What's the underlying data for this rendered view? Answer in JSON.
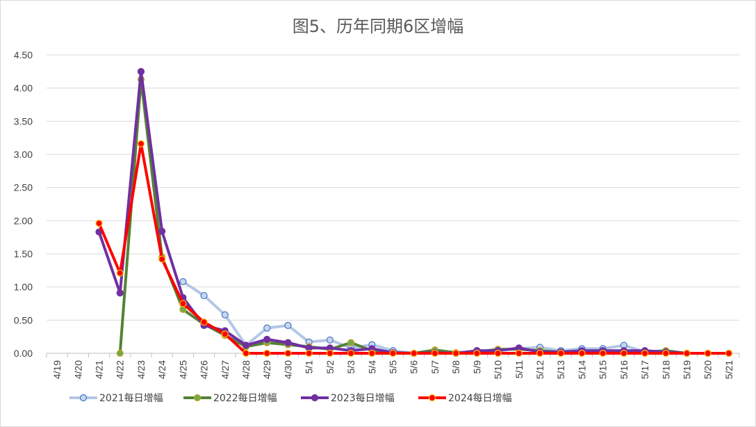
{
  "chart_data": {
    "type": "line",
    "title": "图5、历年同期6区增幅",
    "xlabel": "",
    "ylabel": "",
    "ylim": [
      0,
      4.5
    ],
    "yticks": [
      "0.00",
      "0.50",
      "1.00",
      "1.50",
      "2.00",
      "2.50",
      "3.00",
      "3.50",
      "4.00",
      "4.50"
    ],
    "grid": true,
    "legend_position": "bottom",
    "categories": [
      "4/19",
      "4/20",
      "4/21",
      "4/22",
      "4/23",
      "4/24",
      "4/25",
      "4/26",
      "4/27",
      "4/28",
      "4/29",
      "4/30",
      "5/1",
      "5/2",
      "5/3",
      "5/4",
      "5/5",
      "5/6",
      "5/7",
      "5/8",
      "5/9",
      "5/10",
      "5/11",
      "5/12",
      "5/13",
      "5/14",
      "5/15",
      "5/16",
      "5/17",
      "5/18",
      "5/19",
      "5/20",
      "5/21"
    ],
    "series": [
      {
        "name": "2021每日增幅",
        "line_color": "#b4c7e7",
        "marker_fill": "#c5d7f0",
        "marker_stroke": "#4472c4",
        "values": [
          null,
          null,
          null,
          null,
          null,
          null,
          1.08,
          0.87,
          0.58,
          0.12,
          0.38,
          0.42,
          0.17,
          0.2,
          0.08,
          0.13,
          0.04,
          0,
          0.04,
          0,
          0.04,
          0.04,
          0.07,
          0.09,
          0.04,
          0.07,
          0.07,
          0.12,
          0.02,
          0.02,
          0,
          0,
          0
        ]
      },
      {
        "name": "2022每日增幅",
        "line_color": "#548235",
        "marker_fill": "#70ad47",
        "marker_stroke": "#c9a227",
        "values": [
          null,
          null,
          null,
          0,
          4.13,
          1.45,
          0.66,
          0.44,
          0.27,
          0.1,
          0.16,
          0.13,
          0.1,
          0.06,
          0.16,
          0.04,
          0.01,
          0,
          0.05,
          0.01,
          0.02,
          0.06,
          0.06,
          0.04,
          0.02,
          0.02,
          0.02,
          0.02,
          0.02,
          0.04,
          0,
          0,
          0
        ]
      },
      {
        "name": "2023每日增幅",
        "line_color": "#7030a0",
        "marker_fill": "#7030a0",
        "marker_stroke": "#7030a0",
        "values": [
          null,
          null,
          1.83,
          0.91,
          4.25,
          1.84,
          0.84,
          0.42,
          0.34,
          0.12,
          0.21,
          0.16,
          0.08,
          0.08,
          0.04,
          0.07,
          0.01,
          0,
          0.01,
          0,
          0.04,
          0.04,
          0.08,
          0.02,
          0.02,
          0.04,
          0.04,
          0.04,
          0.04,
          0.02,
          0,
          0,
          0
        ]
      },
      {
        "name": "2024每日增幅",
        "line_color": "#ff0000",
        "marker_fill": "#ff0000",
        "marker_stroke": "#ffc000",
        "values": [
          null,
          null,
          1.96,
          1.21,
          3.16,
          1.42,
          0.75,
          0.47,
          0.29,
          0,
          0,
          0,
          0,
          0,
          0,
          0,
          0,
          0,
          0,
          0,
          0,
          0,
          0,
          0,
          0,
          0,
          0,
          0,
          0,
          0,
          0,
          0,
          0
        ]
      }
    ]
  }
}
